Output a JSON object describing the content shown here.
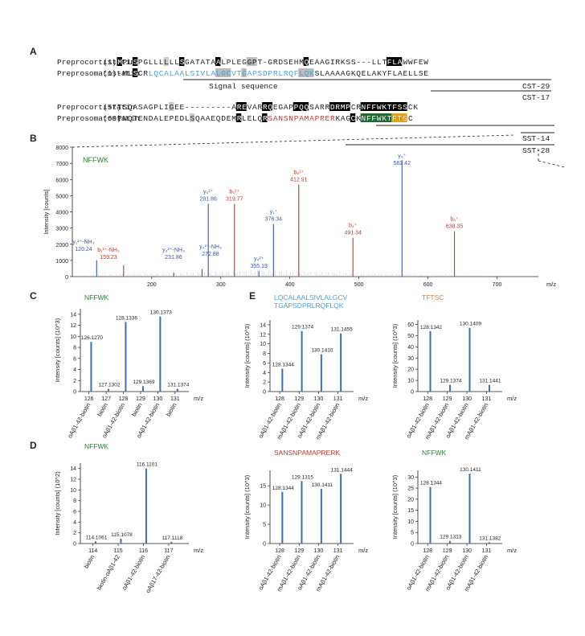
{
  "figure": {
    "panel_a": {
      "label": "A",
      "rows": [
        {
          "name": "Preprocortistatin",
          "start": "(1)",
          "seq": "MPLSPGLLLLLLSGATATAALPLEGGPT-GRDSEHMQEAAGIRKSS---LLTFLAWWFEW"
        },
        {
          "name": "Preprosomatostatin",
          "start": "(1)",
          "seq": "-MLSCRLQCALAALSIVLALGCVTGAPSDPRLRQFLQKSLAAAAGKQELAKYFLAELLSE"
        },
        {
          "name": "Preprocortistatin",
          "start": "(57)",
          "seq": "TSQASAGPLIGEE---------AREVARRQEGAPPQQSARRDRMPCRNFFWKTFSSCK"
        },
        {
          "name": "Preprosomatostatin",
          "start": "(60)",
          "seq": "PNQTENDALEPEDLSQAAEQDEMRLELQRSANSNPAMAPRERKAGCKNFFWKTFTSC"
        }
      ],
      "signal_label": "Signal sequence",
      "brackets": [
        "CST-29",
        "CST-17",
        "SST-14",
        "SST-28"
      ]
    },
    "panel_b": {
      "label": "B",
      "peptide": "NFFWK",
      "annotations": [
        {
          "text": "y₁²⁺-NH₃",
          "value": "120.24",
          "color": "#3a55a4"
        },
        {
          "text": "b₁²⁺-NH₃",
          "value": "159.23",
          "color": "#c0392b"
        },
        {
          "text": "y₃²⁺-NH₃",
          "value": "231.86",
          "color": "#3a55a4"
        },
        {
          "text": "y₄²⁺-NH₃",
          "value": "272.88",
          "color": "#3a55a4"
        },
        {
          "text": "y₄²⁺",
          "value": "281.86",
          "color": "#3a55a4"
        },
        {
          "text": "b₅²⁺",
          "value": "319.77",
          "color": "#c0392b"
        },
        {
          "text": "y₄²⁺",
          "value": "355.19",
          "color": "#3a55a4"
        },
        {
          "text": "y₁⁺",
          "value": "376.34",
          "color": "#3a55a4"
        },
        {
          "text": "b₆²⁺",
          "value": "412.91",
          "color": "#c0392b"
        },
        {
          "text": "b₄⁺",
          "value": "491.34",
          "color": "#c0392b"
        },
        {
          "text": "y₅⁺",
          "value": "562.42",
          "color": "#3a55a4"
        },
        {
          "text": "b₅⁺",
          "value": "638.35",
          "color": "#c0392b"
        }
      ]
    },
    "panel_c": {
      "label": "C",
      "peptide": "NFFWK"
    },
    "panel_d": {
      "label": "D",
      "peptide": "NFFWK"
    },
    "panel_e": {
      "label": "E",
      "peptide1_line1": "LQCALAALSIVLALGCV",
      "peptide1_line2": "TGAPSDPRLRQFLQK",
      "peptide2": "TFTSC",
      "peptide3": "SANSNPAMAPRERK",
      "peptide4": "NFFWK"
    }
  },
  "chart_data": [
    {
      "type": "bar",
      "id": "B",
      "title": "",
      "xlabel": "m/z",
      "ylabel": "Intensity [counts]",
      "xlim": [
        85,
        725
      ],
      "ylim": [
        0,
        8000
      ],
      "xticks": [
        200,
        300,
        400,
        500,
        600,
        700
      ],
      "yticks": [
        0,
        1000,
        2000,
        3000,
        4000,
        5000,
        6000,
        7000,
        8000
      ],
      "x": [
        120.24,
        159.23,
        231.86,
        272.88,
        281.86,
        319.77,
        355.19,
        376.34,
        412.91,
        491.34,
        562.42,
        638.35
      ],
      "values": [
        1000,
        700,
        250,
        450,
        4500,
        4500,
        350,
        3250,
        5700,
        2400,
        7200,
        2800
      ],
      "colors": [
        "#3a55a4",
        "#c0392b",
        "#3a55a4",
        "#3a55a4",
        "#3a55a4",
        "#c0392b",
        "#3a55a4",
        "#3a55a4",
        "#c0392b",
        "#c0392b",
        "#3a55a4",
        "#c0392b"
      ]
    },
    {
      "type": "bar",
      "id": "C",
      "xlabel": "m/z",
      "ylabel": "Intensity [counts] (10^3)",
      "xlim": [
        125.5,
        131.8
      ],
      "ylim": [
        0,
        15
      ],
      "yticks": [
        0,
        2,
        4,
        6,
        8,
        10,
        12,
        14
      ],
      "xticks": [
        126,
        127,
        128,
        129,
        130,
        131
      ],
      "x": [
        126.127,
        127.1302,
        128.1336,
        129.1369,
        130.1373,
        131.1374
      ],
      "values": [
        9,
        0.5,
        12.6,
        1.0,
        13.6,
        0.5
      ],
      "labels": [
        "126.1270",
        "127.1302",
        "128.1336",
        "129.1369",
        "130.1373",
        "131.1374"
      ],
      "categories": [
        "oAβ1-42-biotin",
        "biotin",
        "oAβ1-42-biotin",
        "biotin",
        "oAβ1-42-biotin",
        "biotin"
      ]
    },
    {
      "type": "bar",
      "id": "D",
      "xlabel": "m/z",
      "ylabel": "Intensity [counts] (10^2)",
      "xlim": [
        113.5,
        117.8
      ],
      "ylim": [
        0,
        15
      ],
      "yticks": [
        0,
        2,
        4,
        6,
        8,
        10,
        12,
        14
      ],
      "xticks": [
        114,
        115,
        116,
        117
      ],
      "x": [
        114.1061,
        115.1078,
        116.1101,
        117.1118
      ],
      "values": [
        0.4,
        0.9,
        14.0,
        0.3
      ],
      "labels": [
        "114.1061",
        "115.1078",
        "116.1101",
        "117.1118"
      ],
      "categories": [
        "biotin",
        "biotin-oAβ1-42",
        "oAβ1-42-biotin",
        "oAβ17-42-biotin"
      ]
    },
    {
      "type": "bar",
      "id": "E1",
      "xlabel": "m/z",
      "ylabel": "Intensity [counts] (10^3)",
      "xlim": [
        127.5,
        131.8
      ],
      "ylim": [
        0,
        15
      ],
      "yticks": [
        0,
        2,
        4,
        6,
        8,
        10,
        12,
        14
      ],
      "xticks": [
        128,
        129,
        130,
        131
      ],
      "x": [
        128.1344,
        129.1374,
        130.141,
        131.1455
      ],
      "values": [
        4.8,
        12.7,
        7.8,
        12.2
      ],
      "labels": [
        "128.1344",
        "129.1374",
        "130.1410",
        "131.1455"
      ],
      "categories": [
        "oAβ1-42-biotin",
        "mAβ1-42-biotin",
        "oAβ1-42-biotin",
        "mAβ1-42-biotin"
      ]
    },
    {
      "type": "bar",
      "id": "E2",
      "xlabel": "m/z",
      "ylabel": "Intensity [counts] (10^3)",
      "xlim": [
        127.5,
        131.8
      ],
      "ylim": [
        0,
        64
      ],
      "yticks": [
        0,
        10,
        20,
        30,
        40,
        50,
        60
      ],
      "xticks": [
        128,
        129,
        130,
        131
      ],
      "x": [
        128.1342,
        129.1374,
        130.1409,
        131.1441
      ],
      "values": [
        54,
        6,
        57,
        6
      ],
      "labels": [
        "128.1342",
        "129.1374",
        "130.1409",
        "131.1441"
      ],
      "categories": [
        "oAβ1-42-biotin",
        "mAβ1-42-biotin",
        "oAβ1-42-biotin",
        "mAβ1-42-biotin"
      ]
    },
    {
      "type": "bar",
      "id": "E3",
      "xlabel": "m/z",
      "ylabel": "Intensity [counts] (10^3)",
      "xlim": [
        127.5,
        131.8
      ],
      "ylim": [
        0,
        19
      ],
      "yticks": [
        0,
        5,
        10,
        15
      ],
      "xticks": [
        128,
        129,
        130,
        131
      ],
      "x": [
        128.1344,
        129.1315,
        130.1411,
        131.1444
      ],
      "values": [
        13.4,
        16.2,
        14.2,
        18.1
      ],
      "labels": [
        "128.1344",
        "129.1315",
        "130.1411",
        "131.1444"
      ],
      "categories": [
        "oAβ1-42-biotin",
        "mAβ1-42-biotin",
        "oAβ1-42-biotin",
        "mAβ1-42-biotin"
      ]
    },
    {
      "type": "bar",
      "id": "E4",
      "xlabel": "m/z",
      "ylabel": "Intensity [counts] (10^3)",
      "xlim": [
        127.5,
        131.8
      ],
      "ylim": [
        0,
        33
      ],
      "yticks": [
        0,
        5,
        10,
        15,
        20,
        25,
        30
      ],
      "xticks": [
        128,
        129,
        130,
        131
      ],
      "x": [
        128.1344,
        129.1313,
        130.1411,
        131.1382
      ],
      "values": [
        25.5,
        1.2,
        31.5,
        0.6
      ],
      "labels": [
        "128.1344",
        "129.1313",
        "130.1411",
        "131.1382"
      ],
      "categories": [
        "oAβ1-42-biotin",
        "mAβ1-42-biotin",
        "oAβ1-42-biotin",
        "mAβ1-42-biotin"
      ]
    }
  ]
}
